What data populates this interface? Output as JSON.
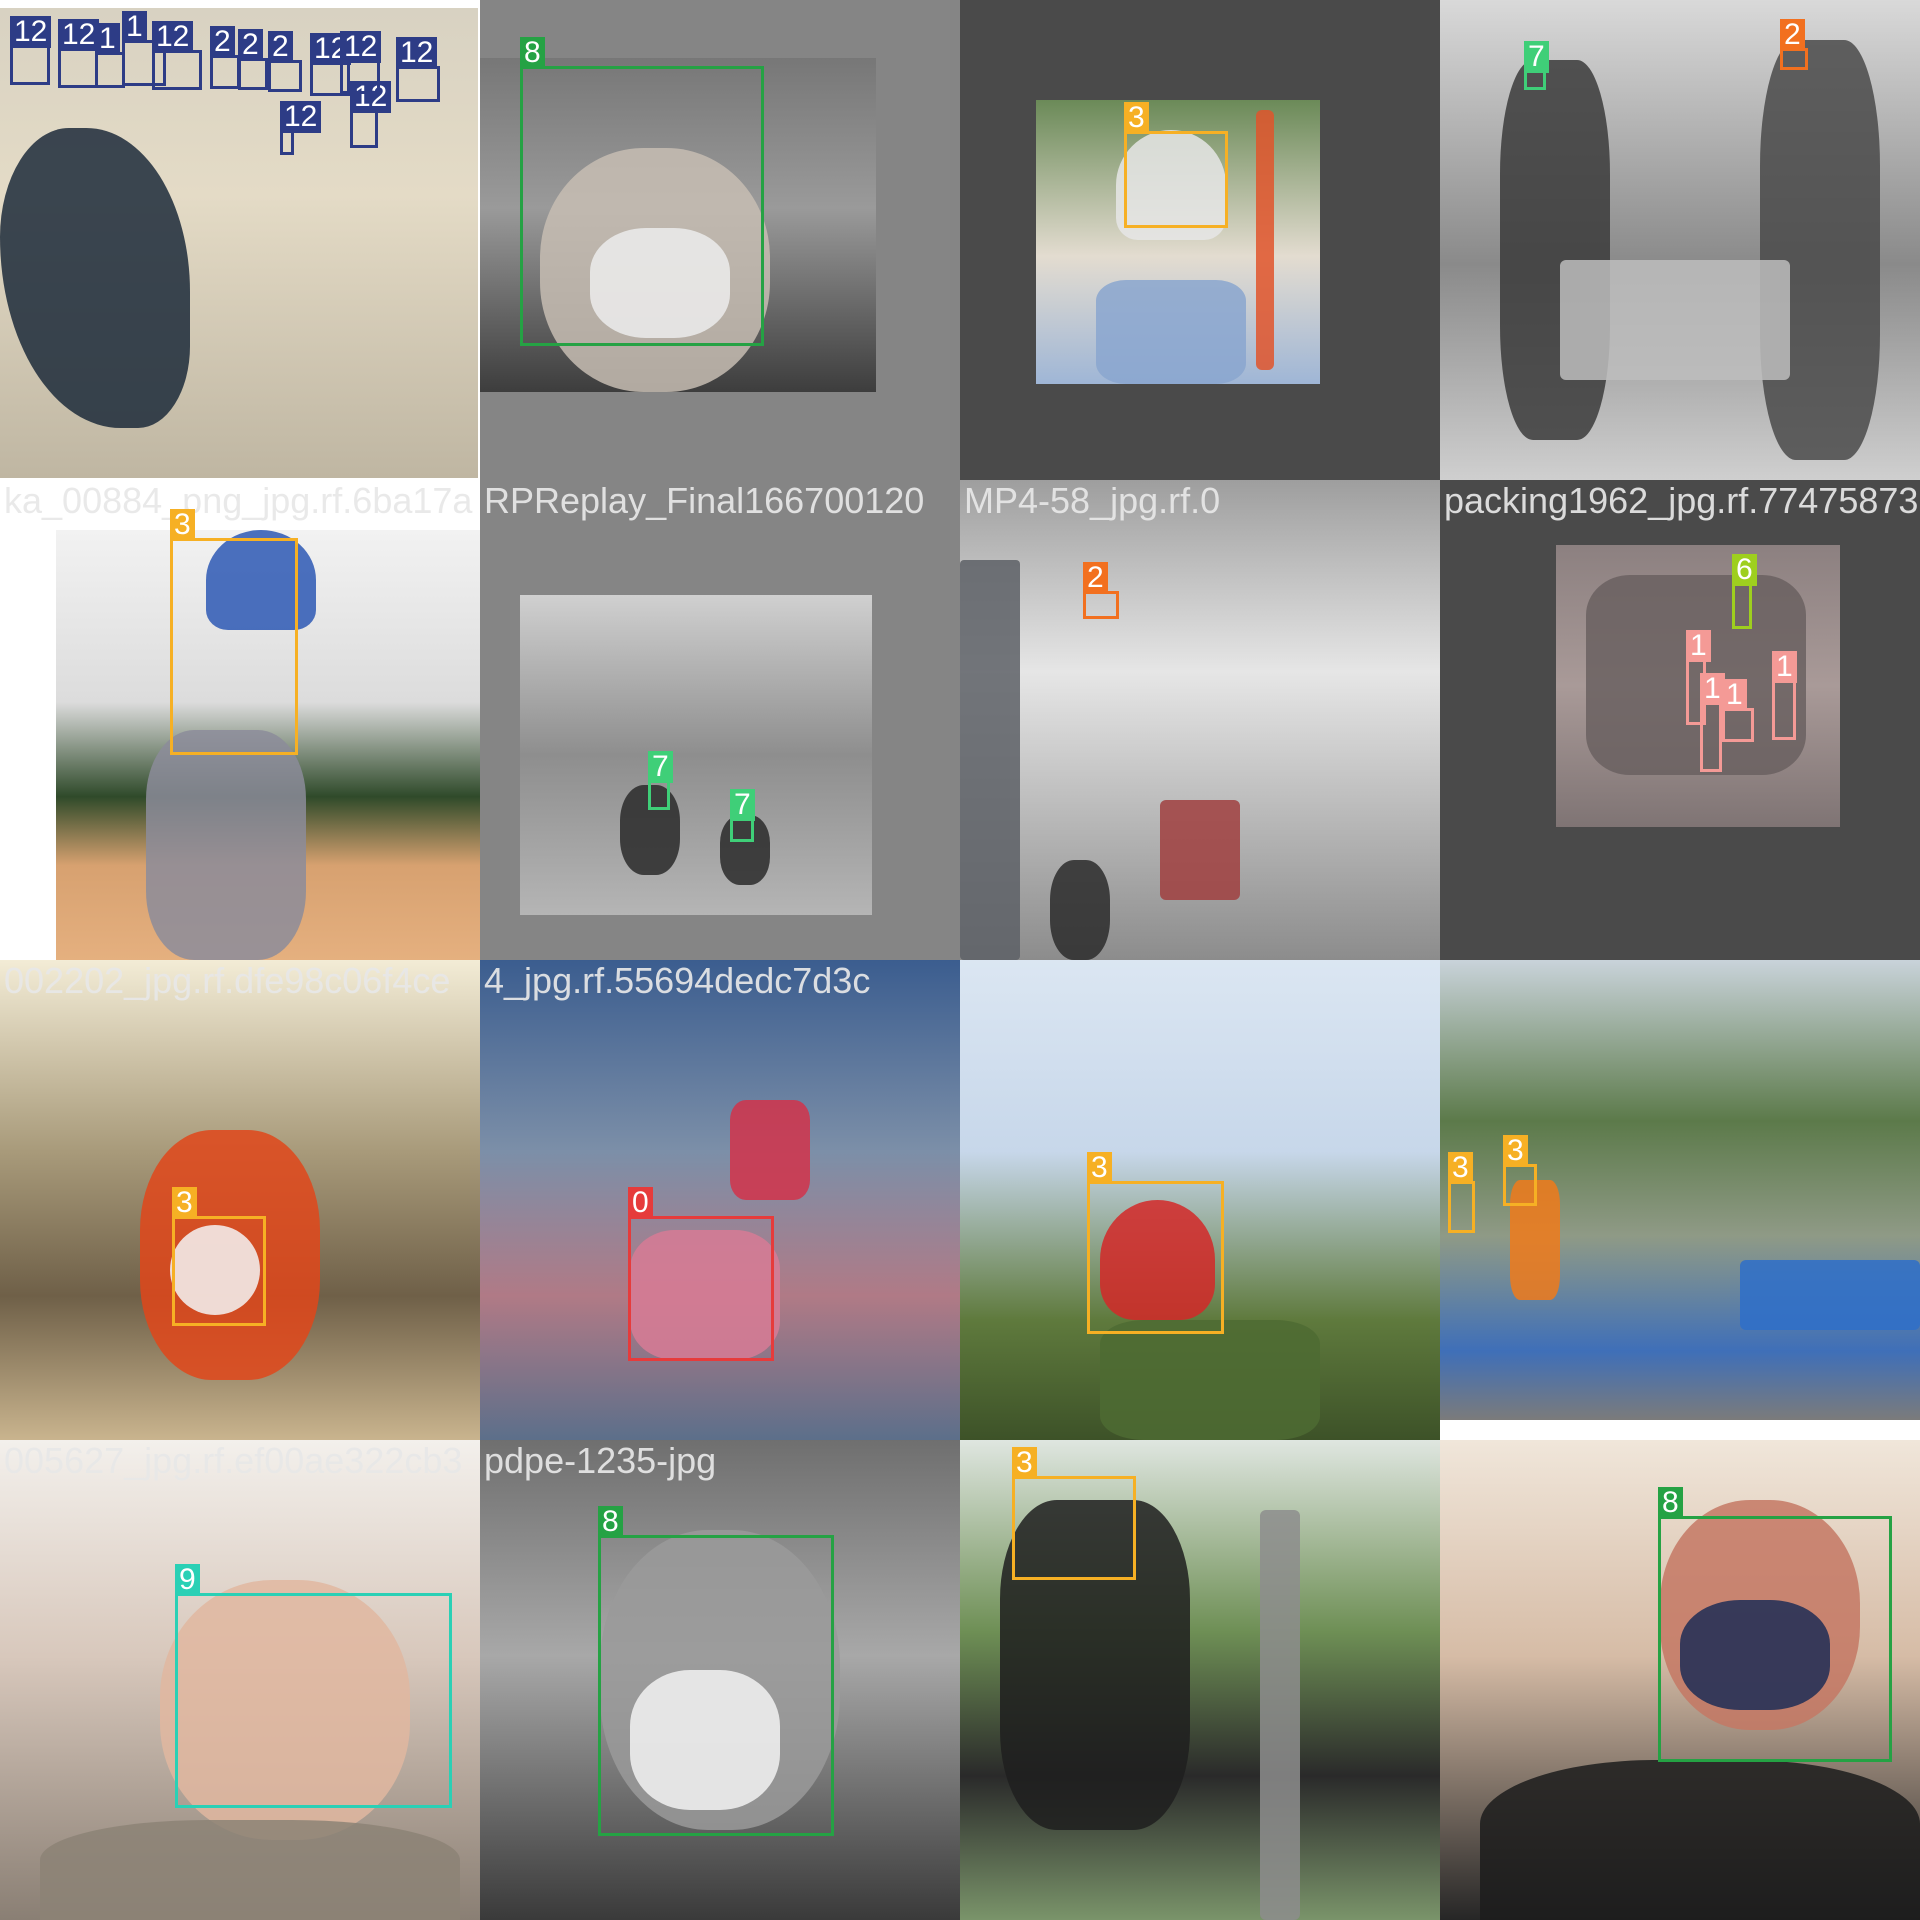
{
  "class_colors": {
    "0": "#e63b3b",
    "1": "#f49a96",
    "2": "#f2701f",
    "3": "#f6b024",
    "6": "#9ecf1e",
    "7": "#3fcf78",
    "8": "#25a244",
    "9": "#2ad0b5",
    "12": "#2d3c86"
  },
  "tiles": [
    {
      "filename": "",
      "background": "#ffffff",
      "photo_tone": "linear-gradient(180deg,#d8d2c2 0%,#e4dbc6 40%,#bfb6a2 100%)",
      "boxes": [
        {
          "label": "12",
          "cls": "12"
        },
        {
          "label": "12",
          "cls": "12"
        },
        {
          "label": "1",
          "cls": "12"
        },
        {
          "label": "1",
          "cls": "12"
        },
        {
          "label": "12",
          "cls": "12"
        },
        {
          "label": "2",
          "cls": "12"
        },
        {
          "label": "2",
          "cls": "12"
        },
        {
          "label": "2",
          "cls": "12"
        },
        {
          "label": "12",
          "cls": "12"
        },
        {
          "label": "12",
          "cls": "12"
        },
        {
          "label": "12",
          "cls": "12"
        },
        {
          "label": "12",
          "cls": "12"
        },
        {
          "label": "12",
          "cls": "12"
        }
      ]
    },
    {
      "filename": "",
      "background": "#858585",
      "photo_tone": "linear-gradient(180deg,#777777 0%,#9a9a9a 45%,#3d3d3d 100%)",
      "boxes": [
        {
          "label": "8",
          "cls": "8"
        }
      ]
    },
    {
      "filename": "",
      "background": "#4a4a4a",
      "photo_tone": "linear-gradient(180deg,#6b8a58 0%,#e3dcd0 55%,#9fb6d6 100%)",
      "boxes": [
        {
          "label": "3",
          "cls": "3"
        }
      ]
    },
    {
      "filename": "",
      "background": "#ffffff",
      "photo_tone": "linear-gradient(180deg,#d9d9d9 0%,#8a8a8a 55%,#cfcfcf 100%)",
      "boxes": [
        {
          "label": "7",
          "cls": "7"
        },
        {
          "label": "2",
          "cls": "2"
        }
      ]
    },
    {
      "filename": "ka_00884_png_jpg.rf.6ba17a",
      "background": "#ffffff",
      "photo_tone": "linear-gradient(180deg,#f2f2f2 0%,#dcdcdc 40%,#2f4a2a 62%,#d7a170 78%,#e5b07f 100%)",
      "boxes": [
        {
          "label": "3",
          "cls": "3"
        }
      ]
    },
    {
      "filename": "RPReplay_Final166700120",
      "background": "#858585",
      "photo_tone": "linear-gradient(180deg,#d0d0d0 0%,#8e8e8e 50%,#b5b5b5 100%)",
      "boxes": [
        {
          "label": "7",
          "cls": "7"
        },
        {
          "label": "7",
          "cls": "7"
        }
      ]
    },
    {
      "filename": "MP4-58_jpg.rf.0",
      "background": "#4a4a4a",
      "photo_tone": "linear-gradient(180deg,#9e9e9e 0%,#e6e6e6 40%,#8c8c8c 100%)",
      "boxes": [
        {
          "label": "2",
          "cls": "2"
        }
      ]
    },
    {
      "filename": "packing1962_jpg.rf.77475873",
      "background": "#4a4a4a",
      "photo_tone": "linear-gradient(180deg,#8c8080 0%,#a99a98 50%,#7f7474 100%)",
      "boxes": [
        {
          "label": "6",
          "cls": "6"
        },
        {
          "label": "1",
          "cls": "1"
        },
        {
          "label": "1",
          "cls": "1"
        },
        {
          "label": "1",
          "cls": "1"
        },
        {
          "label": "1",
          "cls": "1"
        }
      ]
    },
    {
      "filename": "002202_jpg.rf.dfe98c06f4ce",
      "background": "#ffffff",
      "photo_tone": "linear-gradient(180deg,#f3ecd6 0%,#a89a7a 40%,#6f6048 70%,#c9b48e 100%)",
      "boxes": [
        {
          "label": "3",
          "cls": "3"
        }
      ]
    },
    {
      "filename": "4_jpg.rf.55694dedc7d3c",
      "background": "#858585",
      "photo_tone": "linear-gradient(180deg,#3b5d8f 0%,#7c8fa8 40%,#b07a86 70%,#5c6f8a 100%)",
      "boxes": [
        {
          "label": "0",
          "cls": "0"
        }
      ]
    },
    {
      "filename": "",
      "background": "#4a4a4a",
      "photo_tone": "linear-gradient(180deg,#dbe6f2 0%,#c7d7ea 40%,#5f7a3d 75%,#3d5228 100%)",
      "boxes": [
        {
          "label": "3",
          "cls": "3"
        }
      ]
    },
    {
      "filename": "",
      "background": "#ffffff",
      "photo_tone": "linear-gradient(180deg,#c9d3da 0%,#5c7a4a 35%,#8f9a86 60%,#3f6fb8 85%,#7b7b7b 100%)",
      "boxes": [
        {
          "label": "3",
          "cls": "3"
        },
        {
          "label": "3",
          "cls": "3"
        }
      ]
    },
    {
      "filename": "005627_jpg.rf.ef00ae322cb3",
      "background": "#ffffff",
      "photo_tone": "linear-gradient(180deg,#f3f0ec 0%,#d8c8bc 45%,#8a7f74 100%)",
      "boxes": [
        {
          "label": "9",
          "cls": "9"
        }
      ]
    },
    {
      "filename": "pdpe-1235-jpg",
      "background": "#858585",
      "photo_tone": "linear-gradient(180deg,#6f6f6f 0%,#a8a8a8 45%,#3a3a3a 100%)",
      "boxes": [
        {
          "label": "8",
          "cls": "8"
        }
      ]
    },
    {
      "filename": "",
      "background": "#4a4a4a",
      "photo_tone": "linear-gradient(180deg,#dfe6e0 0%,#6e8f55 40%,#2a2a2a 70%,#7a946a 100%)",
      "boxes": [
        {
          "label": "3",
          "cls": "3"
        }
      ]
    },
    {
      "filename": "",
      "background": "#ffffff",
      "photo_tone": "linear-gradient(180deg,#f0e6da 0%,#d6bca6 45%,#262626 100%)",
      "boxes": [
        {
          "label": "8",
          "cls": "8"
        }
      ]
    }
  ]
}
